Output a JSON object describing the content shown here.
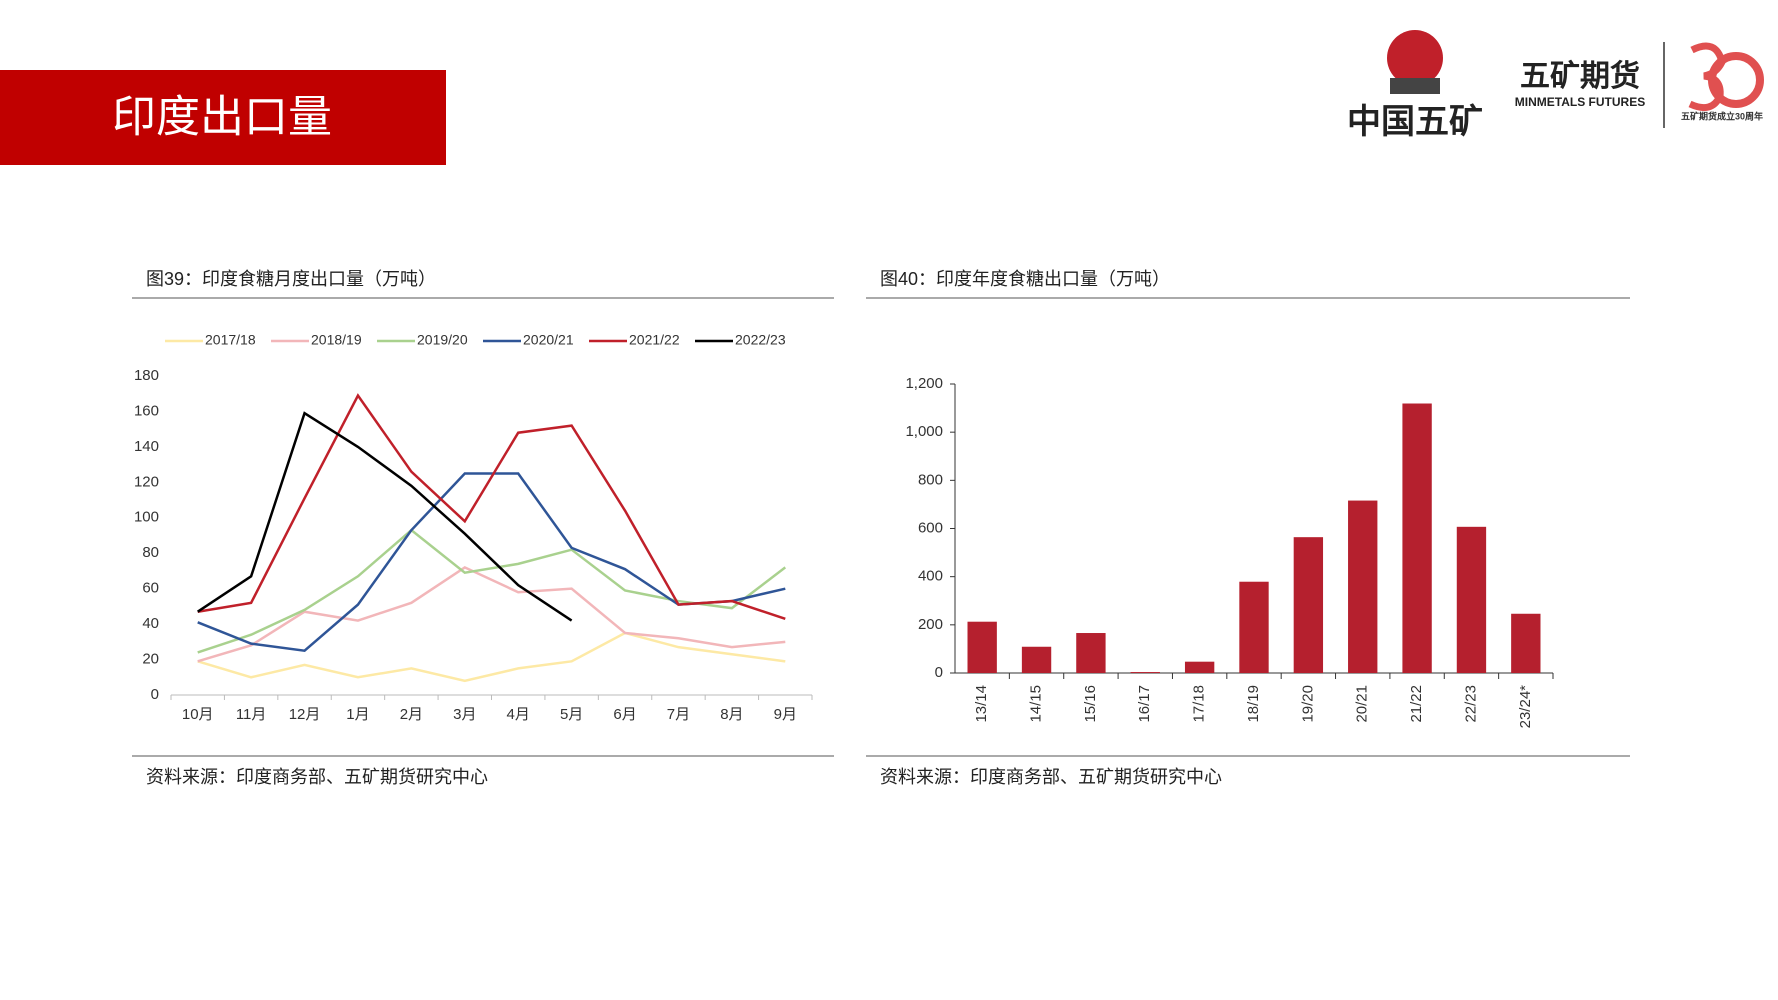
{
  "header": {
    "title": "印度出口量",
    "logo_cn": "中国五矿",
    "logo_brand": "五矿期货",
    "logo_brand_en": "MINMETALS FUTURES",
    "anniv": "五矿期货成立30周年"
  },
  "chart_data": [
    {
      "type": "line",
      "title": "图39：印度食糖月度出口量（万吨）",
      "source": "资料来源：印度商务部、五矿期货研究中心",
      "categories": [
        "10月",
        "11月",
        "12月",
        "1月",
        "2月",
        "3月",
        "4月",
        "5月",
        "6月",
        "7月",
        "8月",
        "9月"
      ],
      "ylim": [
        0,
        180
      ],
      "yticks": [
        0,
        20,
        40,
        60,
        80,
        100,
        120,
        140,
        160,
        180
      ],
      "grid": false,
      "legend": "top",
      "series": [
        {
          "name": "2017/18",
          "color": "#fde9a5",
          "values": [
            19,
            10,
            17,
            10,
            15,
            8,
            15,
            19,
            35,
            27,
            23,
            19
          ]
        },
        {
          "name": "2018/19",
          "color": "#f2b6b9",
          "values": [
            19,
            28,
            47,
            42,
            52,
            72,
            58,
            60,
            35,
            32,
            27,
            30
          ]
        },
        {
          "name": "2019/20",
          "color": "#a9d18e",
          "values": [
            24,
            34,
            48,
            67,
            93,
            69,
            74,
            82,
            59,
            53,
            49,
            72
          ]
        },
        {
          "name": "2020/21",
          "color": "#2f5597",
          "values": [
            41,
            29,
            25,
            51,
            93,
            125,
            125,
            83,
            71,
            51,
            53,
            60
          ]
        },
        {
          "name": "2021/22",
          "color": "#c0202a",
          "values": [
            47,
            52,
            111,
            169,
            126,
            98,
            148,
            152,
            104,
            51,
            53,
            43
          ]
        },
        {
          "name": "2022/23",
          "color": "#000000",
          "values": [
            47,
            67,
            159,
            140,
            118,
            91,
            62,
            42,
            null,
            null,
            null,
            null
          ]
        }
      ]
    },
    {
      "type": "bar",
      "title": "图40：印度年度食糖出口量（万吨）",
      "source": "资料来源：印度商务部、五矿期货研究中心",
      "categories": [
        "13/14",
        "14/15",
        "15/16",
        "16/17",
        "17/18",
        "18/19",
        "19/20",
        "20/21",
        "21/22",
        "22/23",
        "23/24*"
      ],
      "values": [
        213,
        109,
        166,
        4,
        47,
        379,
        564,
        716,
        1119,
        607,
        246
      ],
      "color": "#b5202e",
      "ylim": [
        0,
        1200
      ],
      "yticks": [
        0,
        200,
        400,
        600,
        800,
        {
          "value": 1000,
          "label": "1,000"
        },
        {
          "value": 1200,
          "label": "1,200"
        }
      ],
      "grid": false
    }
  ]
}
